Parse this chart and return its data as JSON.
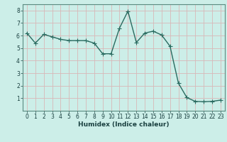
{
  "x": [
    0,
    1,
    2,
    3,
    4,
    5,
    6,
    7,
    8,
    9,
    10,
    11,
    12,
    13,
    14,
    15,
    16,
    17,
    18,
    19,
    20,
    21,
    22,
    23
  ],
  "y": [
    6.2,
    5.4,
    6.1,
    5.9,
    5.7,
    5.6,
    5.6,
    5.6,
    5.4,
    4.55,
    4.55,
    6.6,
    7.95,
    5.45,
    6.2,
    6.35,
    6.05,
    5.15,
    2.2,
    1.05,
    0.75,
    0.72,
    0.75,
    0.85
  ],
  "line_color": "#2a6b60",
  "marker": "+",
  "marker_size": 4,
  "linewidth": 1.0,
  "xlabel": "Humidex (Indice chaleur)",
  "xlabel_fontsize": 6.5,
  "xlabel_color": "#1a4040",
  "xlabel_bold": true,
  "ylim": [
    0,
    8.5
  ],
  "xlim": [
    -0.5,
    23.5
  ],
  "yticks": [
    1,
    2,
    3,
    4,
    5,
    6,
    7,
    8
  ],
  "xticks": [
    0,
    1,
    2,
    3,
    4,
    5,
    6,
    7,
    8,
    9,
    10,
    11,
    12,
    13,
    14,
    15,
    16,
    17,
    18,
    19,
    20,
    21,
    22,
    23
  ],
  "bg_color": "#cceee8",
  "grid_color": "#d8b8b8",
  "tick_color": "#1a4040",
  "tick_fontsize": 5.5,
  "fig_bg_color": "#cceee8",
  "spine_color": "#5a8a80"
}
